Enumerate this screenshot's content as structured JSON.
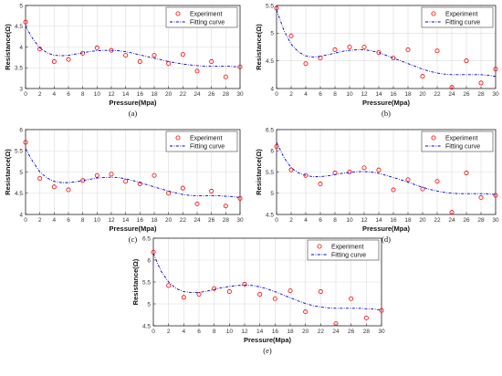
{
  "chart_data": [
    {
      "type": "scatter",
      "panel_label": "(a)",
      "xlabel": "Pressure(Mpa)",
      "ylabel": "Resistance(Ω)",
      "xlim": [
        0,
        30
      ],
      "ylim": [
        3,
        5
      ],
      "xticks": [
        0,
        2,
        4,
        6,
        8,
        10,
        12,
        14,
        16,
        18,
        20,
        22,
        24,
        26,
        28,
        30
      ],
      "yticks": [
        3,
        3.5,
        4,
        4.5,
        5
      ],
      "grid": true,
      "legend_position": "top-right",
      "series": [
        {
          "name": "Experiment",
          "marker": "o",
          "color": "#ff0000",
          "x": [
            0,
            2,
            4,
            6,
            8,
            10,
            12,
            14,
            16,
            18,
            20,
            22,
            24,
            26,
            28,
            30
          ],
          "y": [
            4.6,
            3.95,
            3.65,
            3.7,
            3.85,
            3.98,
            3.92,
            3.8,
            3.65,
            3.8,
            3.6,
            3.82,
            3.42,
            3.65,
            3.28,
            3.52
          ]
        },
        {
          "name": "Fitting curve",
          "line": "dashdot",
          "color": "#0000cc",
          "x": [
            0,
            1,
            2,
            3,
            4,
            5,
            6,
            7,
            8,
            9,
            10,
            11,
            12,
            13,
            14,
            15,
            16,
            17,
            18,
            19,
            20,
            21,
            22,
            23,
            24,
            25,
            26,
            27,
            28,
            29,
            30
          ],
          "y": [
            4.5,
            4.2,
            3.98,
            3.86,
            3.8,
            3.79,
            3.8,
            3.83,
            3.86,
            3.89,
            3.91,
            3.92,
            3.92,
            3.91,
            3.89,
            3.85,
            3.81,
            3.77,
            3.73,
            3.69,
            3.65,
            3.62,
            3.59,
            3.57,
            3.55,
            3.54,
            3.54,
            3.54,
            3.54,
            3.53,
            3.52
          ]
        }
      ]
    },
    {
      "type": "scatter",
      "panel_label": "(b)",
      "xlabel": "Pressure(Mpa)",
      "ylabel": "Resistance(Ω)",
      "xlim": [
        0,
        30
      ],
      "ylim": [
        4,
        5.5
      ],
      "xticks": [
        0,
        2,
        4,
        6,
        8,
        10,
        12,
        14,
        16,
        18,
        20,
        22,
        24,
        26,
        28,
        30
      ],
      "yticks": [
        4,
        4.5,
        5,
        5.5
      ],
      "grid": true,
      "legend_position": "top-right",
      "series": [
        {
          "name": "Experiment",
          "marker": "o",
          "color": "#ff0000",
          "x": [
            0,
            2,
            4,
            6,
            8,
            10,
            12,
            14,
            16,
            18,
            20,
            22,
            24,
            26,
            28,
            30
          ],
          "y": [
            5.45,
            4.95,
            4.45,
            4.55,
            4.7,
            4.75,
            4.75,
            4.65,
            4.55,
            4.7,
            4.22,
            4.68,
            4.02,
            4.5,
            4.1,
            4.35
          ]
        },
        {
          "name": "Fitting curve",
          "line": "dashdot",
          "color": "#0000cc",
          "x": [
            0,
            1,
            2,
            3,
            4,
            5,
            6,
            7,
            8,
            9,
            10,
            11,
            12,
            13,
            14,
            15,
            16,
            17,
            18,
            19,
            20,
            21,
            22,
            23,
            24,
            25,
            26,
            27,
            28,
            29,
            30
          ],
          "y": [
            5.42,
            5.05,
            4.8,
            4.66,
            4.59,
            4.57,
            4.58,
            4.61,
            4.64,
            4.67,
            4.69,
            4.7,
            4.7,
            4.68,
            4.65,
            4.6,
            4.55,
            4.5,
            4.45,
            4.4,
            4.35,
            4.31,
            4.28,
            4.26,
            4.25,
            4.25,
            4.25,
            4.25,
            4.25,
            4.24,
            4.22
          ]
        }
      ]
    },
    {
      "type": "scatter",
      "panel_label": "(c)",
      "xlabel": "Pressure(Mpa)",
      "ylabel": "Resistance(Ω)",
      "xlim": [
        0,
        30
      ],
      "ylim": [
        4,
        6
      ],
      "xticks": [
        0,
        2,
        4,
        6,
        8,
        10,
        12,
        14,
        16,
        18,
        20,
        22,
        24,
        26,
        28,
        30
      ],
      "yticks": [
        4,
        4.5,
        5,
        5.5,
        6
      ],
      "grid": true,
      "legend_position": "top-right",
      "series": [
        {
          "name": "Experiment",
          "marker": "o",
          "color": "#ff0000",
          "x": [
            0,
            2,
            4,
            6,
            8,
            10,
            12,
            14,
            16,
            18,
            20,
            22,
            24,
            26,
            28,
            30
          ],
          "y": [
            5.7,
            4.85,
            4.65,
            4.58,
            4.8,
            4.92,
            4.95,
            4.78,
            4.72,
            4.92,
            4.5,
            4.62,
            4.25,
            4.55,
            4.2,
            4.38
          ]
        },
        {
          "name": "Fitting curve",
          "line": "dashdot",
          "color": "#0000cc",
          "x": [
            0,
            1,
            2,
            3,
            4,
            5,
            6,
            7,
            8,
            9,
            10,
            11,
            12,
            13,
            14,
            15,
            16,
            17,
            18,
            19,
            20,
            21,
            22,
            23,
            24,
            25,
            26,
            27,
            28,
            29,
            30
          ],
          "y": [
            5.55,
            5.25,
            5.0,
            4.86,
            4.78,
            4.75,
            4.75,
            4.77,
            4.8,
            4.83,
            4.86,
            4.87,
            4.88,
            4.87,
            4.84,
            4.8,
            4.75,
            4.7,
            4.65,
            4.6,
            4.55,
            4.51,
            4.47,
            4.45,
            4.44,
            4.44,
            4.44,
            4.44,
            4.43,
            4.42,
            4.4
          ]
        }
      ]
    },
    {
      "type": "scatter",
      "panel_label": "(d)",
      "xlabel": "Pressure(Mpa)",
      "ylabel": "Resistance(Ω)",
      "xlim": [
        0,
        30
      ],
      "ylim": [
        4.5,
        6.5
      ],
      "xticks": [
        0,
        2,
        4,
        6,
        8,
        10,
        12,
        14,
        16,
        18,
        20,
        22,
        24,
        26,
        28,
        30
      ],
      "yticks": [
        4.5,
        5,
        5.5,
        6,
        6.5
      ],
      "grid": true,
      "legend_position": "top-right",
      "series": [
        {
          "name": "Experiment",
          "marker": "o",
          "color": "#ff0000",
          "x": [
            0,
            2,
            4,
            6,
            8,
            10,
            12,
            14,
            16,
            18,
            20,
            22,
            24,
            26,
            28,
            30
          ],
          "y": [
            6.1,
            5.55,
            5.42,
            5.22,
            5.48,
            5.5,
            5.6,
            5.55,
            5.08,
            5.32,
            5.1,
            5.28,
            4.55,
            5.48,
            4.9,
            4.95
          ]
        },
        {
          "name": "Fitting curve",
          "line": "dashdot",
          "color": "#0000cc",
          "x": [
            0,
            1,
            2,
            3,
            4,
            5,
            6,
            7,
            8,
            9,
            10,
            11,
            12,
            13,
            14,
            15,
            16,
            17,
            18,
            19,
            20,
            21,
            22,
            23,
            24,
            25,
            26,
            27,
            28,
            29,
            30
          ],
          "y": [
            6.2,
            5.85,
            5.6,
            5.48,
            5.42,
            5.39,
            5.39,
            5.41,
            5.44,
            5.47,
            5.49,
            5.51,
            5.51,
            5.5,
            5.47,
            5.42,
            5.37,
            5.32,
            5.26,
            5.2,
            5.14,
            5.09,
            5.05,
            5.02,
            5.0,
            4.99,
            4.99,
            4.99,
            4.99,
            4.98,
            4.97
          ]
        }
      ]
    },
    {
      "type": "scatter",
      "panel_label": "(e)",
      "xlabel": "Pressure(Mpa)",
      "ylabel": "Resistance(Ω)",
      "xlim": [
        0,
        30
      ],
      "ylim": [
        4.5,
        6.5
      ],
      "xticks": [
        0,
        2,
        4,
        6,
        8,
        10,
        12,
        14,
        16,
        18,
        20,
        22,
        24,
        26,
        28,
        30
      ],
      "yticks": [
        4.5,
        5,
        5.5,
        6,
        6.5
      ],
      "grid": true,
      "legend_position": "top-right",
      "series": [
        {
          "name": "Experiment",
          "marker": "o",
          "color": "#ff0000",
          "x": [
            0,
            2,
            4,
            6,
            8,
            10,
            12,
            14,
            16,
            18,
            20,
            22,
            24,
            26,
            28,
            30
          ],
          "y": [
            6.18,
            5.42,
            5.15,
            5.22,
            5.35,
            5.28,
            5.45,
            5.22,
            5.12,
            5.3,
            4.82,
            5.28,
            4.55,
            5.12,
            4.68,
            4.85
          ]
        },
        {
          "name": "Fitting curve",
          "line": "dashdot",
          "color": "#0000cc",
          "x": [
            0,
            1,
            2,
            3,
            4,
            5,
            6,
            7,
            8,
            9,
            10,
            11,
            12,
            13,
            14,
            15,
            16,
            17,
            18,
            19,
            20,
            21,
            22,
            23,
            24,
            25,
            26,
            27,
            28,
            29,
            30
          ],
          "y": [
            6.15,
            5.75,
            5.5,
            5.35,
            5.28,
            5.26,
            5.26,
            5.29,
            5.33,
            5.37,
            5.4,
            5.42,
            5.43,
            5.42,
            5.39,
            5.34,
            5.28,
            5.21,
            5.14,
            5.07,
            5.01,
            4.96,
            4.93,
            4.91,
            4.9,
            4.9,
            4.9,
            4.9,
            4.89,
            4.88,
            4.86
          ]
        }
      ]
    }
  ]
}
